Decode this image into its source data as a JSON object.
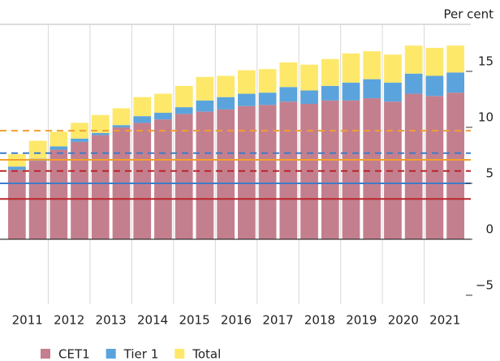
{
  "chart_data": {
    "type": "bar",
    "stacked": true,
    "unit_label": "Per cent",
    "categories": [
      "2011",
      null,
      "2012",
      null,
      "2013",
      null,
      "2014",
      null,
      "2015",
      null,
      "2016",
      null,
      "2017",
      null,
      "2018",
      null,
      "2019",
      null,
      "2020",
      null,
      "2021",
      null
    ],
    "series": [
      {
        "name": "CET1",
        "color": "#c47f8e",
        "values": [
          6.2,
          7.0,
          8.0,
          8.7,
          9.3,
          10.0,
          10.4,
          10.7,
          11.2,
          11.4,
          11.6,
          11.9,
          12.0,
          12.3,
          12.1,
          12.4,
          12.4,
          12.6,
          12.3,
          13.0,
          12.8,
          13.1
        ]
      },
      {
        "name": "Tier 1",
        "color": "#5ba3dc",
        "values": [
          0.3,
          0.2,
          0.3,
          0.3,
          0.2,
          0.2,
          0.6,
          0.6,
          0.6,
          1.0,
          1.1,
          1.1,
          1.1,
          1.3,
          1.2,
          1.3,
          1.6,
          1.7,
          1.7,
          1.8,
          1.8,
          1.8
        ]
      },
      {
        "name": "Total",
        "color": "#fde86a",
        "values": [
          1.1,
          1.6,
          1.3,
          1.4,
          1.6,
          1.5,
          1.7,
          1.7,
          1.9,
          2.1,
          1.9,
          2.1,
          2.1,
          2.2,
          2.3,
          2.4,
          2.6,
          2.5,
          2.5,
          2.5,
          2.5,
          2.4
        ]
      }
    ],
    "reference_lines": [
      {
        "value": 3.6,
        "color": "#b8262b",
        "dashed": false
      },
      {
        "value": 5.0,
        "color": "#3d7cc9",
        "dashed": false
      },
      {
        "value": 7.1,
        "color": "#f0a030",
        "dashed": false
      },
      {
        "value": 6.1,
        "color": "#b8262b",
        "dashed": true
      },
      {
        "value": 7.7,
        "color": "#3d7cc9",
        "dashed": true
      },
      {
        "value": 9.7,
        "color": "#f0a030",
        "dashed": true
      }
    ],
    "ylim": [
      -5.8,
      19.2
    ],
    "yticks": [
      {
        "value": -5,
        "label": "−5"
      },
      0,
      5,
      10,
      15
    ],
    "y_axis_side": "right"
  }
}
